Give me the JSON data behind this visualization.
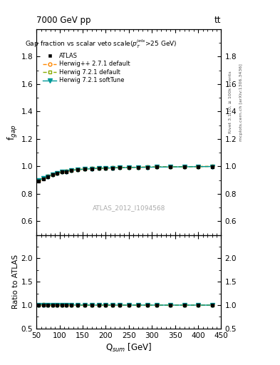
{
  "title_top": "7000 GeV pp",
  "title_top_right": "tt",
  "right_label_top": "Rivet 3.1.10, ≥ 100k events",
  "right_label_bottom": "mcplots.cern.ch [arXiv:1306.3436]",
  "main_title": "Gap fraction vs scalar veto scale(p$_T^{jets}$>25 GeV)",
  "watermark": "ATLAS_2012_I1094568",
  "xlabel": "Q$_{sum}$ [GeV]",
  "ylabel_main": "f$_{gap}$",
  "ylabel_ratio": "Ratio to ATLAS",
  "xlim": [
    50,
    450
  ],
  "ylim_main": [
    0.5,
    2.0
  ],
  "ylim_ratio": [
    0.5,
    2.5
  ],
  "yticks_main": [
    0.6,
    0.8,
    1.0,
    1.2,
    1.4,
    1.6,
    1.8
  ],
  "yticks_ratio": [
    0.5,
    1.0,
    1.5,
    2.0
  ],
  "x_data": [
    55,
    65,
    75,
    85,
    95,
    105,
    115,
    125,
    140,
    155,
    170,
    185,
    200,
    215,
    230,
    250,
    270,
    290,
    310,
    340,
    370,
    400,
    430
  ],
  "atlas_y": [
    0.895,
    0.908,
    0.923,
    0.94,
    0.95,
    0.958,
    0.963,
    0.97,
    0.975,
    0.98,
    0.983,
    0.985,
    0.987,
    0.989,
    0.99,
    0.992,
    0.993,
    0.994,
    0.995,
    0.996,
    0.997,
    0.998,
    0.999
  ],
  "atlas_yerr": [
    0.01,
    0.009,
    0.008,
    0.007,
    0.006,
    0.005,
    0.005,
    0.005,
    0.004,
    0.004,
    0.004,
    0.003,
    0.003,
    0.003,
    0.003,
    0.003,
    0.003,
    0.003,
    0.003,
    0.003,
    0.003,
    0.003,
    0.003
  ],
  "herwig_pp_y": [
    0.9,
    0.915,
    0.928,
    0.942,
    0.952,
    0.96,
    0.965,
    0.972,
    0.977,
    0.981,
    0.984,
    0.986,
    0.988,
    0.99,
    0.991,
    0.993,
    0.994,
    0.995,
    0.996,
    0.997,
    0.998,
    0.999,
    1.0
  ],
  "herwig721_y": [
    0.9,
    0.915,
    0.928,
    0.942,
    0.952,
    0.96,
    0.965,
    0.972,
    0.977,
    0.981,
    0.984,
    0.986,
    0.988,
    0.99,
    0.991,
    0.993,
    0.994,
    0.995,
    0.996,
    0.997,
    0.998,
    0.999,
    1.0
  ],
  "herwig721soft_y": [
    0.898,
    0.912,
    0.926,
    0.94,
    0.95,
    0.958,
    0.963,
    0.97,
    0.976,
    0.98,
    0.983,
    0.985,
    0.987,
    0.989,
    0.99,
    0.992,
    0.993,
    0.994,
    0.995,
    0.996,
    0.997,
    0.998,
    0.999
  ],
  "color_atlas": "#000000",
  "color_herwig_pp": "#ff8800",
  "color_herwig721": "#88aa00",
  "color_herwig721soft": "#009999",
  "background_color": "#ffffff"
}
